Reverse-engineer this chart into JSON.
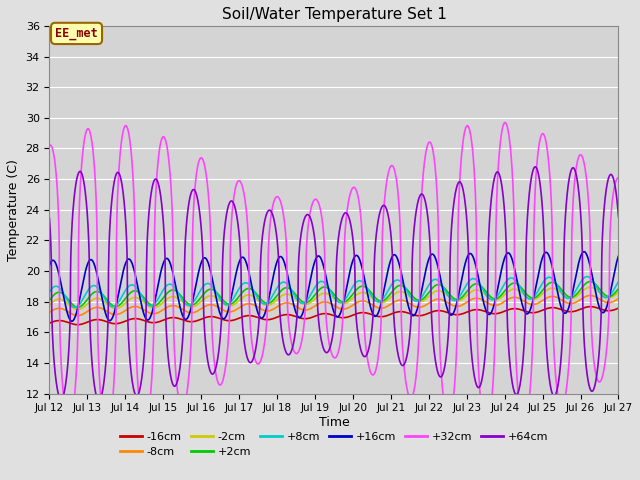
{
  "title": "Soil/Water Temperature Set 1",
  "xlabel": "Time",
  "ylabel": "Temperature (C)",
  "ylim": [
    12,
    36
  ],
  "yticks": [
    12,
    14,
    16,
    18,
    20,
    22,
    24,
    26,
    28,
    30,
    32,
    34,
    36
  ],
  "background_color": "#e0e0e0",
  "plot_bg_color": "#d4d4d4",
  "annotation_text": "EE_met",
  "annotation_bg": "#ffffb0",
  "annotation_border": "#996600",
  "annotation_text_color": "#880000",
  "colors": {
    "-16cm": "#cc0000",
    "-8cm": "#ff8800",
    "-2cm": "#cccc00",
    "+2cm": "#00cc00",
    "+8cm": "#00cccc",
    "+16cm": "#0000cc",
    "+32cm": "#ff44ff",
    "+64cm": "#8800cc"
  },
  "legend_order": [
    "-16cm",
    "-8cm",
    "-2cm",
    "+2cm",
    "+8cm",
    "+16cm",
    "+32cm",
    "+64cm"
  ],
  "xtick_labels": [
    "Jul 12",
    "Jul 13",
    "Jul 14",
    "Jul 15",
    "Jul 16",
    "Jul 17",
    "Jul 18",
    "Jul 19",
    "Jul 20",
    "Jul 21",
    "Jul 22",
    "Jul 23",
    "Jul 24",
    "Jul 25",
    "Jul 26",
    "Jul 27"
  ]
}
